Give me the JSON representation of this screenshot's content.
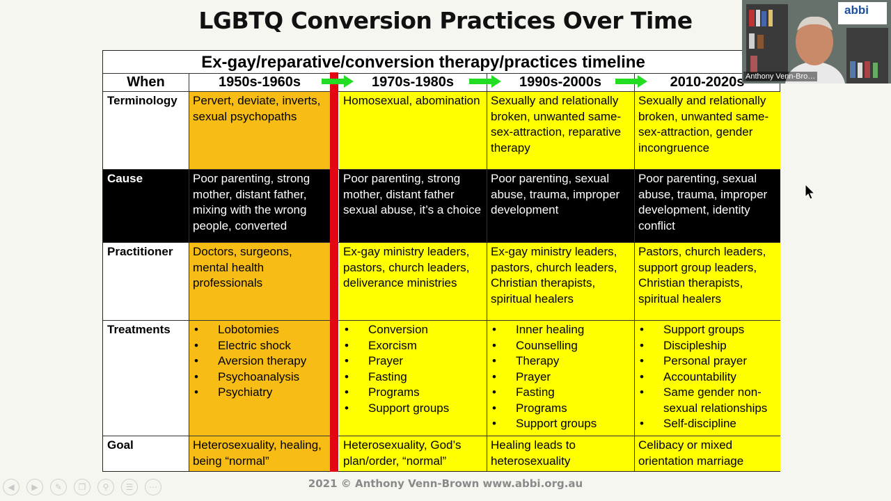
{
  "slide_title": "LGBTQ Conversion Practices Over Time",
  "table": {
    "title": "Ex-gay/reparative/conversion therapy/practices timeline",
    "when_label": "When",
    "periods": [
      "1950s-1960s",
      "1970s-1980s",
      "1990s-2000s",
      "2010-2020s"
    ],
    "rows": {
      "terminology": {
        "label": "Terminology",
        "cells": [
          "Pervert, deviate, inverts, sexual psychopaths",
          "Homosexual, abomination",
          "Sexually and relationally broken, unwanted same-sex-attraction, reparative therapy",
          "Sexually and relationally broken, unwanted same-sex-attraction, gender incongruence"
        ]
      },
      "cause": {
        "label": "Cause",
        "cells": [
          "Poor parenting, strong mother, distant father, mixing with the wrong people, converted",
          "Poor parenting, strong mother, distant father sexual abuse, it’s a choice",
          "Poor parenting, sexual abuse, trauma, improper development",
          "Poor parenting, sexual abuse, trauma, improper development, identity conflict"
        ]
      },
      "practitioner": {
        "label": "Practitioner",
        "cells": [
          "Doctors, surgeons, mental health professionals",
          "Ex-gay ministry leaders, pastors, church leaders, deliverance ministries",
          "Ex-gay ministry leaders, pastors, church leaders, Christian therapists, spiritual healers",
          "Pastors, church leaders, support group leaders, Christian therapists, spiritual healers"
        ]
      },
      "treatments": {
        "label": "Treatments",
        "cells": [
          [
            "Lobotomies",
            "Electric shock",
            "Aversion therapy",
            "Psychoanalysis",
            "Psychiatry"
          ],
          [
            "Conversion",
            "Exorcism",
            "Prayer",
            "Fasting",
            "Programs",
            "Support groups"
          ],
          [
            "Inner healing",
            "Counselling",
            "Therapy",
            "Prayer",
            "Fasting",
            "Programs",
            "Support groups"
          ],
          [
            "Support groups",
            "Discipleship",
            "Personal prayer",
            "Accountability",
            "Same gender non-sexual relationships",
            "Self-discipline"
          ]
        ]
      },
      "goal": {
        "label": "Goal",
        "cells": [
          "Heterosexuality, healing, being “normal”",
          "Heterosexuality, God’s plan/order, “normal”",
          "Healing leads to heterosexuality",
          "Celibacy or mixed orientation marriage"
        ]
      }
    }
  },
  "footer": "2021 © Anthony Venn-Brown www.abbi.org.au",
  "video": {
    "speaker_name": "Anthony Venn-Bro…",
    "logo_text": "abbi"
  },
  "icons": {
    "arrow": "right-arrow-icon",
    "controls": [
      "previous-slide-icon",
      "next-slide-icon",
      "pen-icon",
      "copy-icon",
      "zoom-icon",
      "menu-icon",
      "more-icon"
    ],
    "cursor": "mouse-pointer-icon"
  },
  "colors": {
    "early_column": "#f7bd14",
    "later_columns": "#ffff00",
    "cause_row": "#000000",
    "divider": "#e30613",
    "arrows": "#22dd22"
  }
}
